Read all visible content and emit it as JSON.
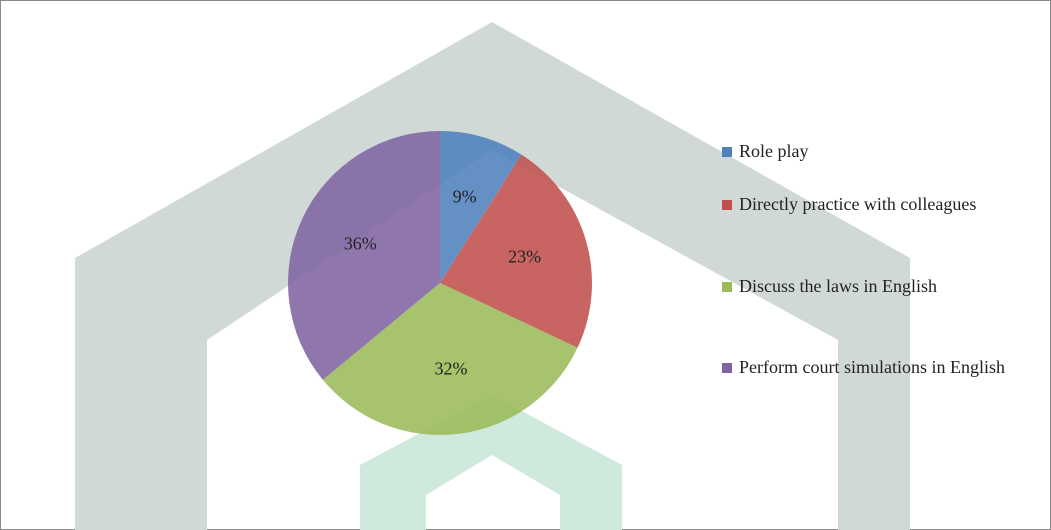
{
  "chart_data": {
    "type": "pie",
    "categories": [
      "Role play",
      "Directly practice  with colleagues",
      "Discuss the laws in English",
      "Perform court  simulations  in English"
    ],
    "values": [
      9,
      23,
      32,
      36
    ],
    "value_labels": [
      "9%",
      "23%",
      "32%",
      "36%"
    ],
    "colors": [
      "#4f81bd",
      "#c0504d",
      "#9bbb59",
      "#8064a2"
    ],
    "legend": "right"
  }
}
